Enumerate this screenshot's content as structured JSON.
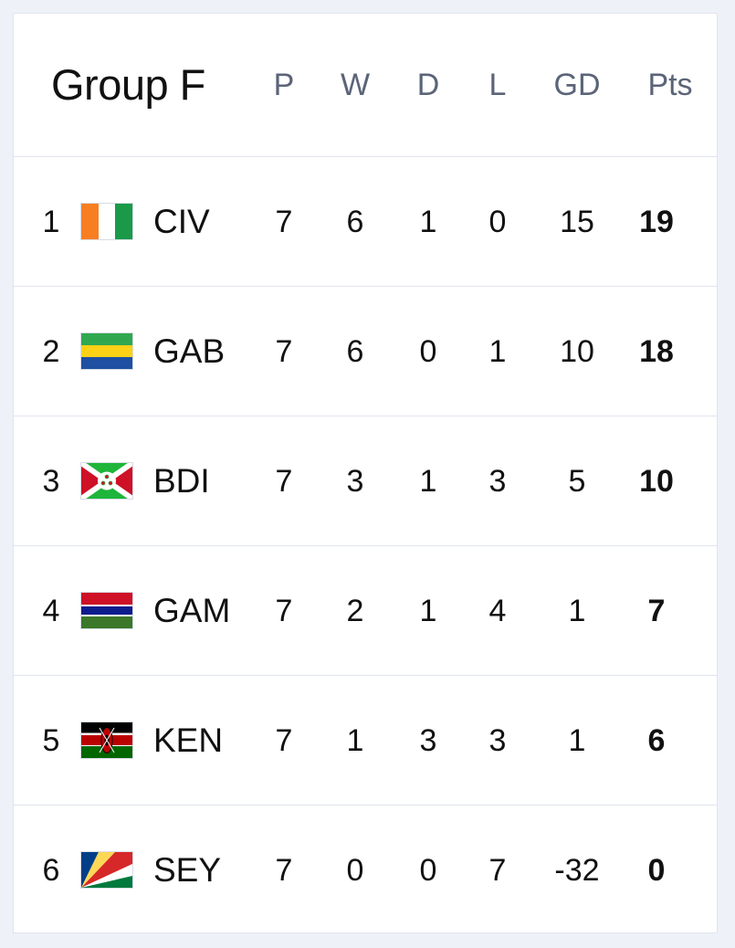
{
  "group_title": "Group F",
  "columns": [
    "P",
    "W",
    "D",
    "L",
    "GD",
    "Pts"
  ],
  "rows": [
    {
      "pos": "1",
      "flag_icon": "ivory-coast-flag-icon",
      "team": "CIV",
      "p": "7",
      "w": "6",
      "d": "1",
      "l": "0",
      "gd": "15",
      "pts": "19"
    },
    {
      "pos": "2",
      "flag_icon": "gabon-flag-icon",
      "team": "GAB",
      "p": "7",
      "w": "6",
      "d": "0",
      "l": "1",
      "gd": "10",
      "pts": "18"
    },
    {
      "pos": "3",
      "flag_icon": "burundi-flag-icon",
      "team": "BDI",
      "p": "7",
      "w": "3",
      "d": "1",
      "l": "3",
      "gd": "5",
      "pts": "10"
    },
    {
      "pos": "4",
      "flag_icon": "gambia-flag-icon",
      "team": "GAM",
      "p": "7",
      "w": "2",
      "d": "1",
      "l": "4",
      "gd": "1",
      "pts": "7"
    },
    {
      "pos": "5",
      "flag_icon": "kenya-flag-icon",
      "team": "KEN",
      "p": "7",
      "w": "1",
      "d": "3",
      "l": "3",
      "gd": "1",
      "pts": "6"
    },
    {
      "pos": "6",
      "flag_icon": "seychelles-flag-icon",
      "team": "SEY",
      "p": "7",
      "w": "0",
      "d": "0",
      "l": "7",
      "gd": "-32",
      "pts": "0"
    }
  ],
  "colors": {
    "background": "#eef1f8",
    "card": "#ffffff",
    "divider": "#e1e4ee",
    "header_text": "#5b6478",
    "body_text": "#111111"
  }
}
